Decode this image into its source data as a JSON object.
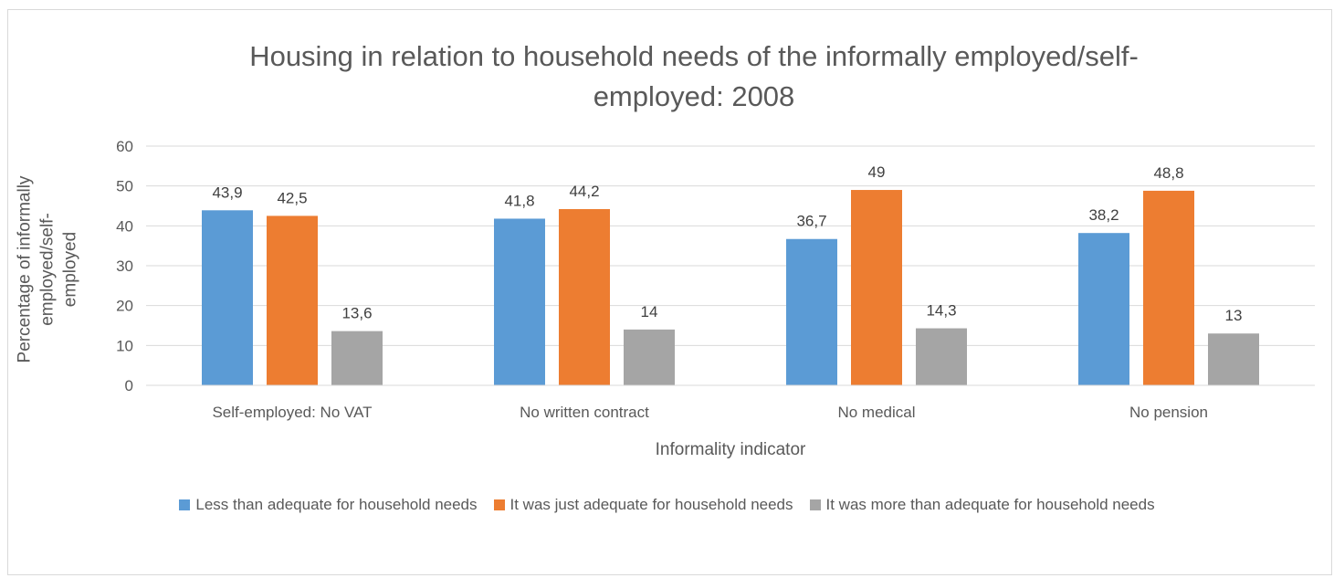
{
  "chart_data": {
    "type": "bar",
    "title": "Housing in relation to household needs of the informally employed/self-employed: 2008",
    "title_lines": [
      "Housing in relation to household needs of the informally employed/self-",
      "employed: 2008"
    ],
    "xlabel": "Informality indicator",
    "ylabel": "Percentage of informally employed/self-employed",
    "ylabel_lines": [
      "Percentage of informally employed/self-",
      "employed"
    ],
    "ylim": [
      0,
      60
    ],
    "yticks": [
      0,
      10,
      20,
      30,
      40,
      50,
      60
    ],
    "grid": true,
    "legend_position": "bottom",
    "categories": [
      "Self-employed: No VAT",
      "No written contract",
      "No medical",
      "No pension"
    ],
    "series": [
      {
        "name": "Less than adequate for household needs",
        "color": "#5b9bd5",
        "values": [
          43.9,
          41.8,
          36.7,
          38.2
        ],
        "labels": [
          "43,9",
          "41,8",
          "36,7",
          "38,2"
        ]
      },
      {
        "name": "It was just adequate for household needs",
        "color": "#ed7d31",
        "values": [
          42.5,
          44.2,
          49,
          48.8
        ],
        "labels": [
          "42,5",
          "44,2",
          "49",
          "48,8"
        ]
      },
      {
        "name": "It was more than adequate for household needs",
        "color": "#a5a5a5",
        "values": [
          13.6,
          14,
          14.3,
          13
        ],
        "labels": [
          "13,6",
          "14",
          "14,3",
          "13"
        ]
      }
    ]
  }
}
